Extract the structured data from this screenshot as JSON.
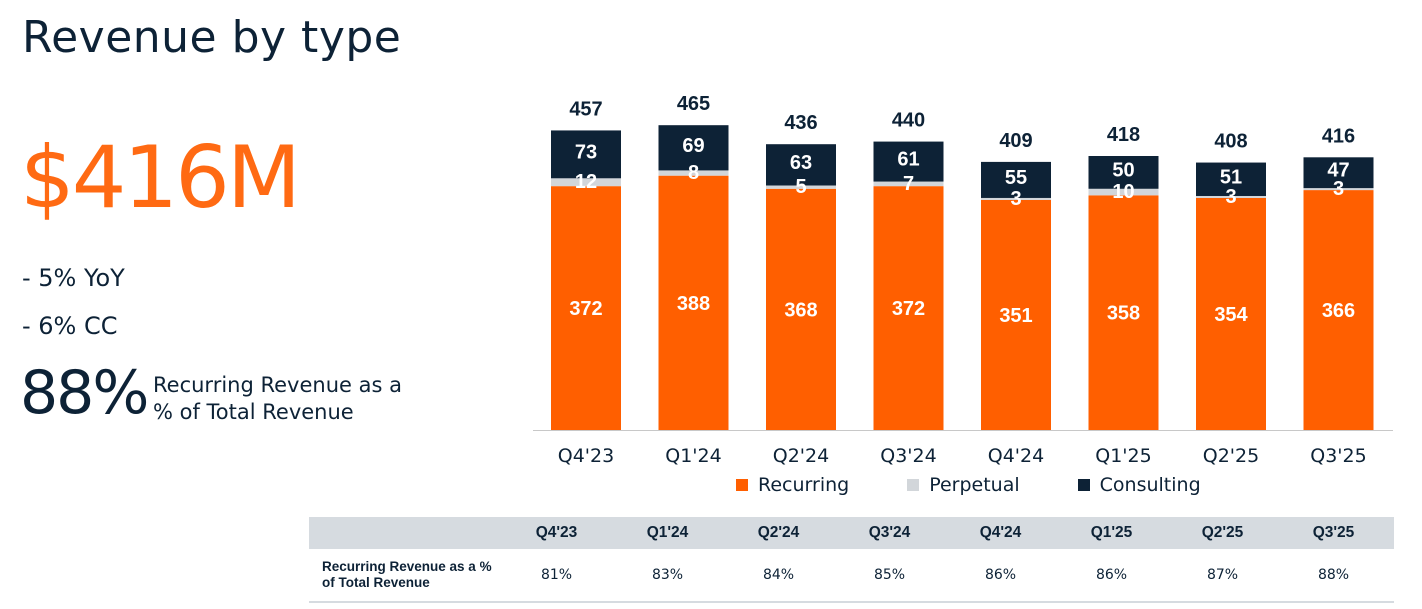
{
  "title": "Revenue by type",
  "headline_value": "$416M",
  "yoy_text": "- 5% YoY",
  "cc_text": "- 6% CC",
  "recurring_pct": "88%",
  "recurring_pct_desc": "Recurring Revenue as a % of Total Revenue",
  "colors": {
    "recurring": "#ff5f00",
    "perpetual": "#d2d6da",
    "consulting": "#0d2236",
    "text": "#0d2236",
    "headline": "#ff6a13"
  },
  "chart_data": {
    "type": "bar",
    "stacked": true,
    "categories": [
      "Q4'23",
      "Q1'24",
      "Q2'24",
      "Q3'24",
      "Q4'24",
      "Q1'25",
      "Q2'25",
      "Q3'25"
    ],
    "series": [
      {
        "name": "Recurring",
        "values": [
          372,
          388,
          368,
          372,
          351,
          358,
          354,
          366
        ]
      },
      {
        "name": "Perpetual",
        "values": [
          12,
          8,
          5,
          7,
          3,
          10,
          3,
          3
        ]
      },
      {
        "name": "Consulting",
        "values": [
          73,
          69,
          63,
          61,
          55,
          50,
          51,
          47
        ]
      }
    ],
    "totals": [
      457,
      465,
      436,
      440,
      409,
      418,
      408,
      416
    ],
    "ylabel": "",
    "xlabel": "",
    "grid": false,
    "legend_position": "bottom"
  },
  "table": {
    "row_label": "Recurring Revenue as a % of Total Revenue",
    "headers": [
      "Q4'23",
      "Q1'24",
      "Q2'24",
      "Q3'24",
      "Q4'24",
      "Q1'25",
      "Q2'25",
      "Q3'25"
    ],
    "values": [
      "81%",
      "83%",
      "84%",
      "85%",
      "86%",
      "86%",
      "87%",
      "88%"
    ]
  }
}
